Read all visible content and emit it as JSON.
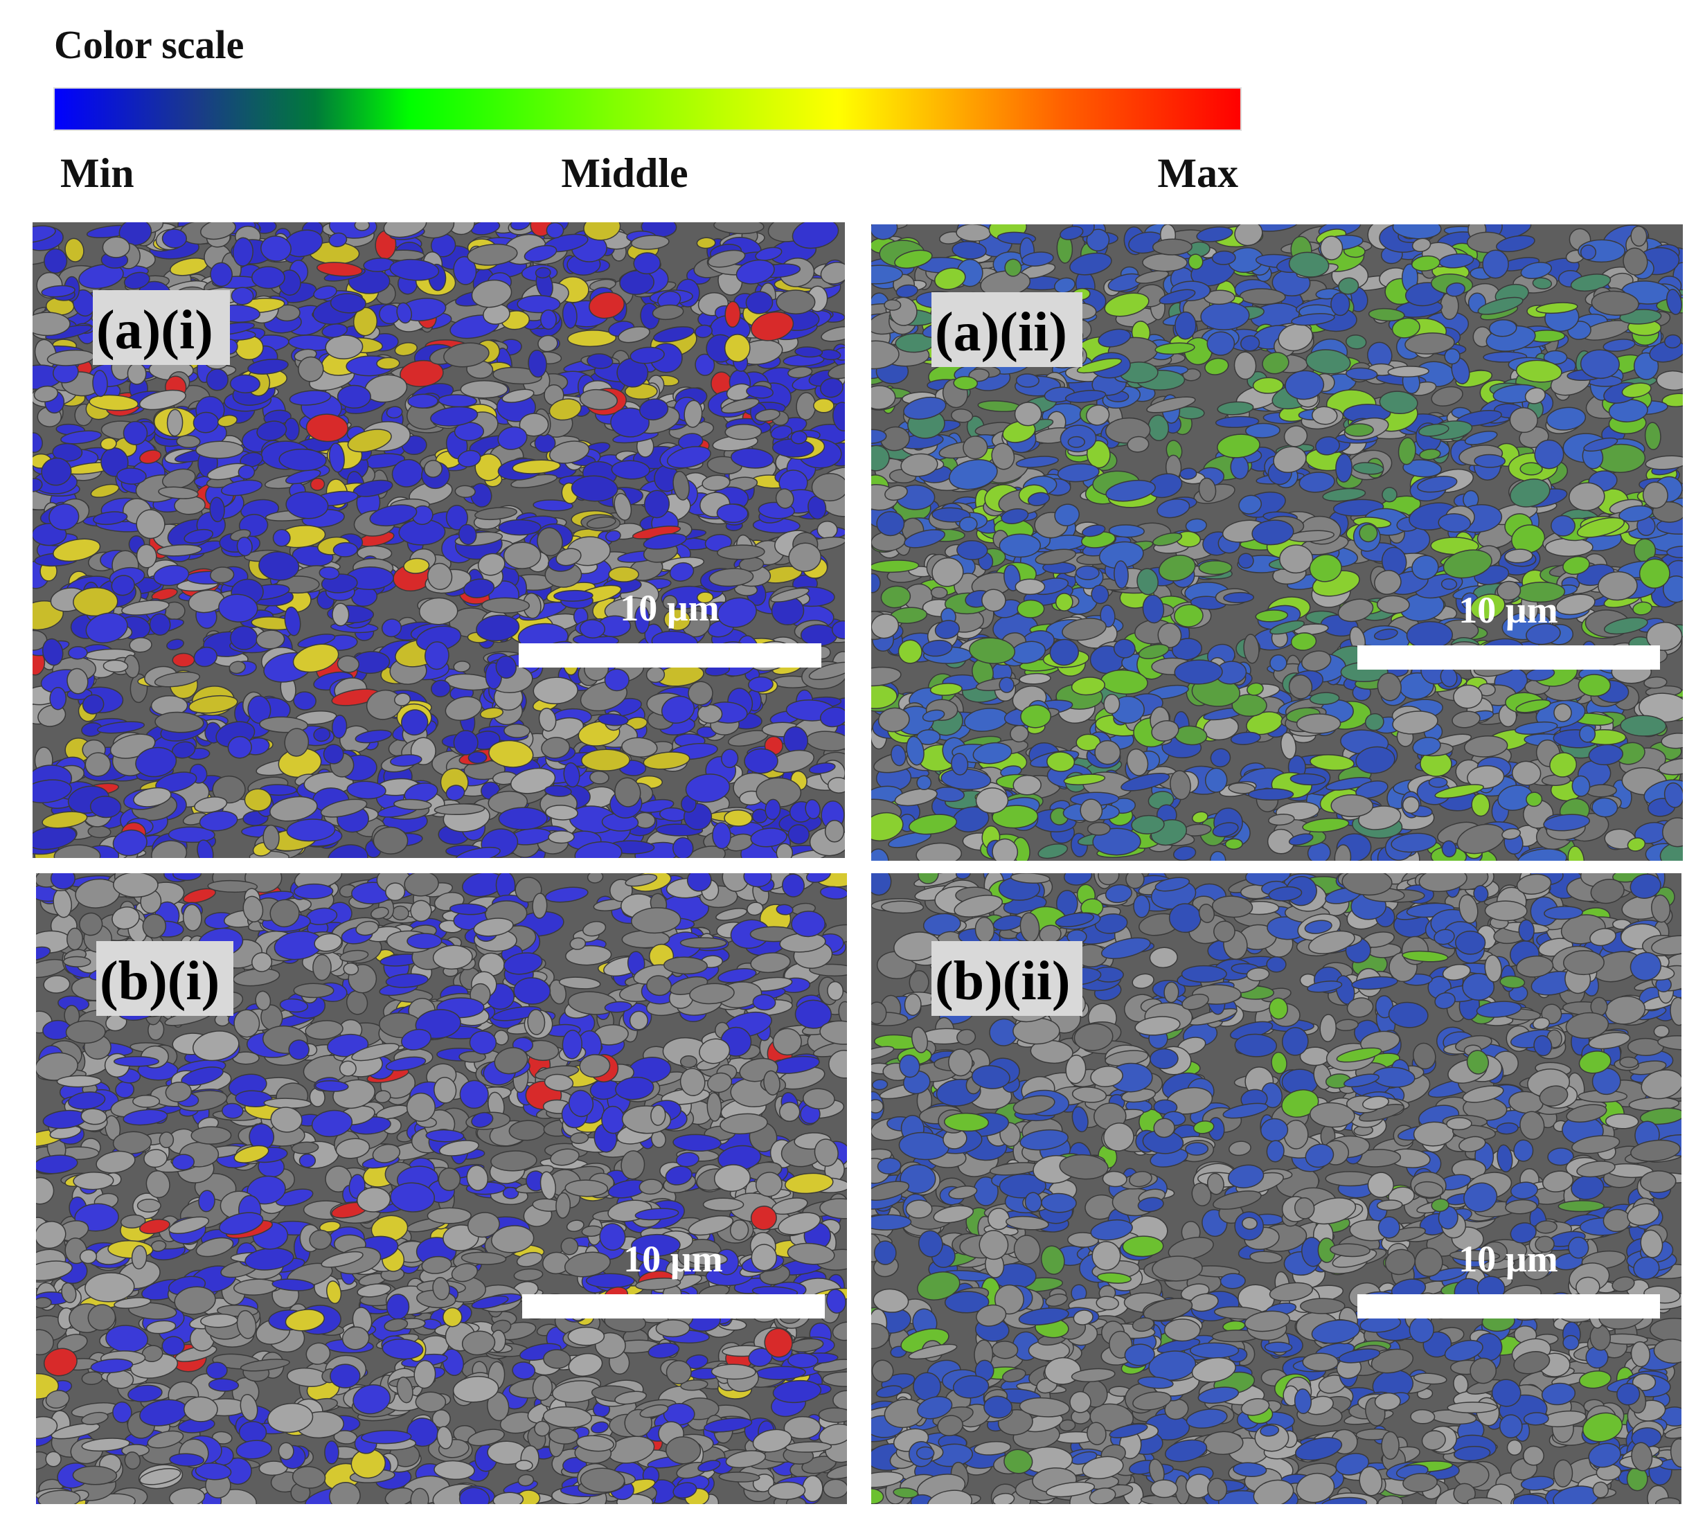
{
  "color_scale": {
    "title": "Color scale",
    "labels": [
      "Min",
      "Middle",
      "Max"
    ]
  },
  "panels": [
    {
      "label": "(a)(i)",
      "scale_bar": "10 µm"
    },
    {
      "label": "(a)(ii)",
      "scale_bar": "10 µm"
    },
    {
      "label": "(b)(i)",
      "scale_bar": "10 µm"
    },
    {
      "label": "(b)(ii)",
      "scale_bar": "10 µm"
    }
  ]
}
